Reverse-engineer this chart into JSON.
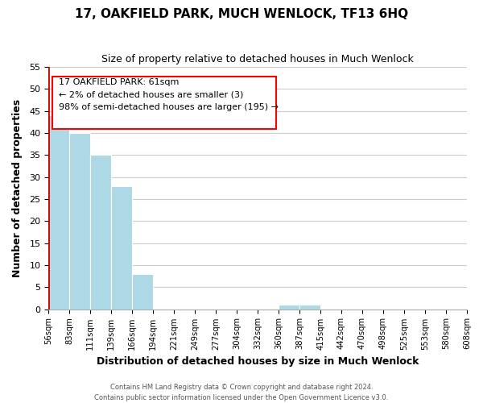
{
  "title": "17, OAKFIELD PARK, MUCH WENLOCK, TF13 6HQ",
  "subtitle": "Size of property relative to detached houses in Much Wenlock",
  "xlabel": "Distribution of detached houses by size in Much Wenlock",
  "ylabel": "Number of detached properties",
  "footer_lines": [
    "Contains HM Land Registry data © Crown copyright and database right 2024.",
    "Contains public sector information licensed under the Open Government Licence v3.0."
  ],
  "bin_labels": [
    "56sqm",
    "83sqm",
    "111sqm",
    "139sqm",
    "166sqm",
    "194sqm",
    "221sqm",
    "249sqm",
    "277sqm",
    "304sqm",
    "332sqm",
    "360sqm",
    "387sqm",
    "415sqm",
    "442sqm",
    "470sqm",
    "498sqm",
    "525sqm",
    "553sqm",
    "580sqm",
    "608sqm"
  ],
  "bar_heights": [
    44,
    40,
    35,
    28,
    8,
    0,
    0,
    0,
    0,
    0,
    0,
    1,
    1,
    0,
    0,
    0,
    0,
    0,
    0,
    0
  ],
  "bar_color": "#add8e6",
  "annotation_text_line1": "17 OAKFIELD PARK: 61sqm",
  "annotation_text_line2": "← 2% of detached houses are smaller (3)",
  "annotation_text_line3": "98% of semi-detached houses are larger (195) →",
  "ylim": [
    0,
    55
  ],
  "yticks": [
    0,
    5,
    10,
    15,
    20,
    25,
    30,
    35,
    40,
    45,
    50,
    55
  ],
  "property_line_color": "#cc0000",
  "grid_color": "#cccccc",
  "background_color": "#ffffff"
}
